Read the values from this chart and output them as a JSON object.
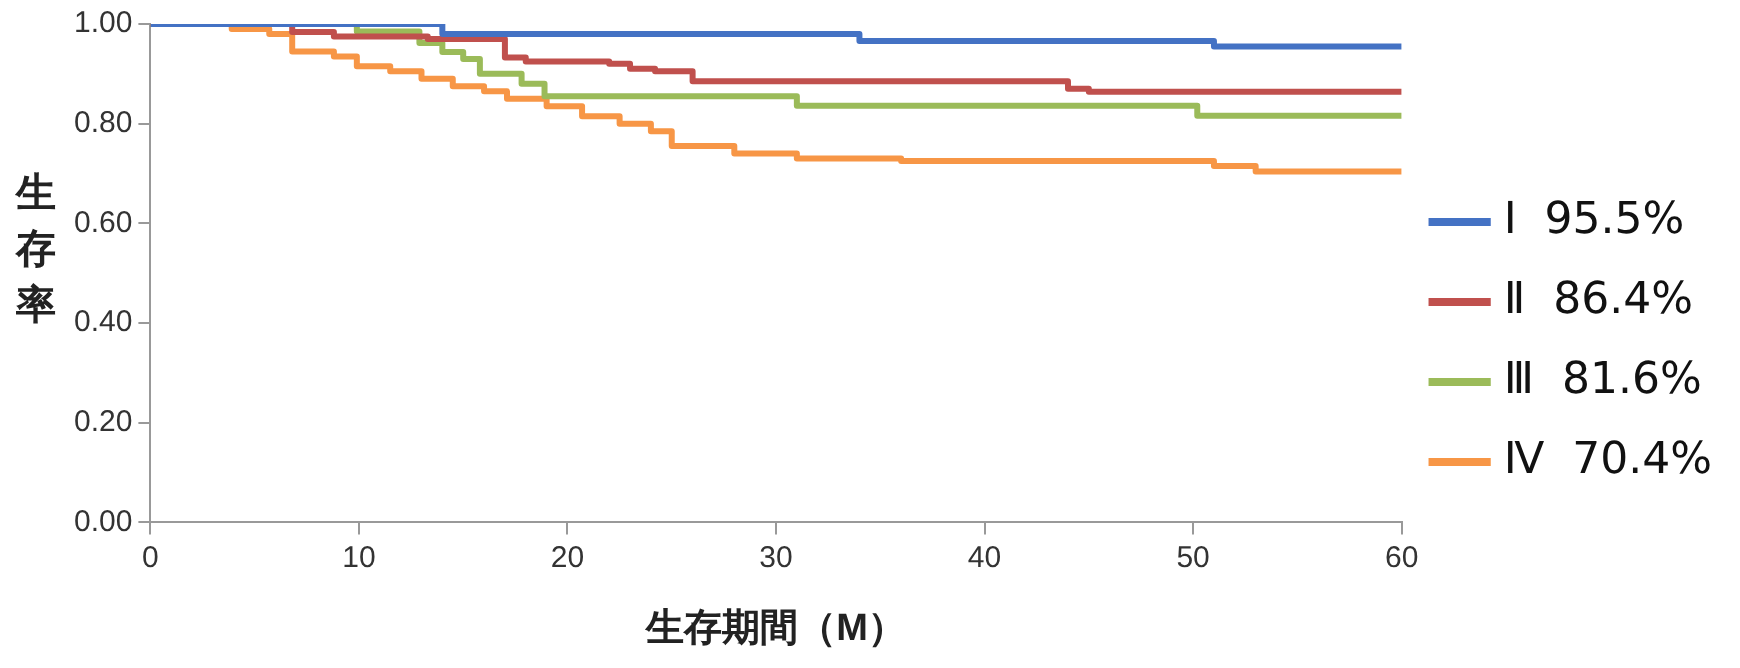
{
  "chart_data": {
    "type": "step",
    "xlabel": "生存期間（M）",
    "ylabel": "生存率",
    "xlim": [
      0,
      60
    ],
    "xticks": [
      0,
      10,
      20,
      30,
      40,
      50,
      60
    ],
    "ylim": [
      0,
      1
    ],
    "yticks": [
      {
        "value": 0,
        "label": "0.00"
      },
      {
        "value": 0.2,
        "label": "0.20"
      },
      {
        "value": 0.4,
        "label": "0.40"
      },
      {
        "value": 0.6,
        "label": "0.60"
      },
      {
        "value": 0.8,
        "label": "0.80"
      },
      {
        "value": 1,
        "label": "1.00"
      }
    ],
    "grid": false,
    "legend": "right",
    "marker": "none",
    "line_style": "solid",
    "series": [
      {
        "name": "Ⅰ  95.5%",
        "color": "#4472c4",
        "x": [
          0,
          14,
          34,
          51,
          60
        ],
        "values": [
          1,
          0.98,
          0.966,
          0.955,
          0.955
        ]
      },
      {
        "name": "Ⅱ  86.4%",
        "color": "#c0504d",
        "x": [
          0,
          6.8,
          8.8,
          13.3,
          17,
          18,
          22,
          23,
          24.2,
          26,
          44,
          45,
          60
        ],
        "values": [
          1,
          0.984,
          0.975,
          0.97,
          0.933,
          0.925,
          0.92,
          0.91,
          0.905,
          0.885,
          0.87,
          0.864,
          0.864
        ]
      },
      {
        "name": "Ⅲ  81.6%",
        "color": "#9bbb59",
        "x": [
          0,
          9.9,
          12.9,
          14,
          15,
          15.8,
          17.8,
          18.9,
          31,
          50.2,
          60
        ],
        "values": [
          1,
          0.985,
          0.962,
          0.944,
          0.93,
          0.9,
          0.88,
          0.855,
          0.836,
          0.816,
          0.816
        ]
      },
      {
        "name": "Ⅳ  70.4%",
        "color": "#f79646",
        "x": [
          0,
          3.9,
          5.7,
          6.8,
          8.8,
          9.9,
          11.5,
          13,
          14.5,
          16,
          17.1,
          19,
          20.7,
          22.5,
          24,
          25,
          28,
          31,
          36,
          51,
          53,
          60
        ],
        "values": [
          1,
          0.99,
          0.98,
          0.945,
          0.935,
          0.915,
          0.905,
          0.89,
          0.875,
          0.865,
          0.85,
          0.835,
          0.815,
          0.8,
          0.785,
          0.755,
          0.74,
          0.73,
          0.725,
          0.715,
          0.704,
          0.704
        ]
      }
    ]
  }
}
